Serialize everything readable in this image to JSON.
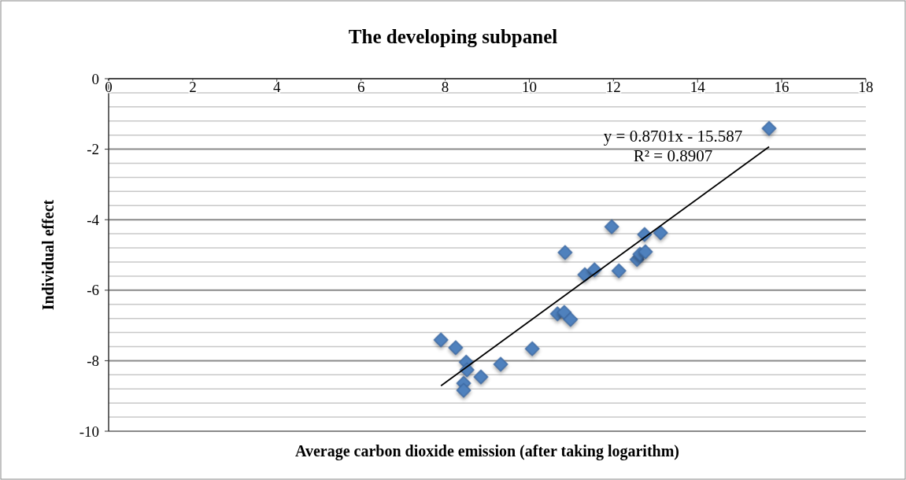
{
  "chart_data": {
    "type": "scatter",
    "title": "The developing subpanel",
    "xlabel": "Average carbon dioxide emission (after taking logarithm)",
    "ylabel": "Individual effect",
    "xlim": [
      0,
      18
    ],
    "xticks": [
      0,
      2,
      4,
      6,
      8,
      10,
      12,
      14,
      16,
      18
    ],
    "ylim": [
      -10,
      0
    ],
    "yticks": [
      -10,
      {
        "value": -9.6,
        "label": null
      },
      {
        "value": -9.2,
        "label": null
      },
      {
        "value": -8.8,
        "label": null
      },
      {
        "value": -8.4,
        "label": null
      },
      -8,
      {
        "value": -7.6,
        "label": null
      },
      {
        "value": -7.2,
        "label": null
      },
      {
        "value": -6.8,
        "label": null
      },
      {
        "value": -6.4,
        "label": null
      },
      -6,
      {
        "value": -5.6,
        "label": null
      },
      {
        "value": -5.2,
        "label": null
      },
      {
        "value": -4.8,
        "label": null
      },
      {
        "value": -4.4,
        "label": null
      },
      -4,
      {
        "value": -3.6,
        "label": null
      },
      {
        "value": -3.2,
        "label": null
      },
      {
        "value": -2.8,
        "label": null
      },
      {
        "value": -2.4,
        "label": null
      },
      -2,
      {
        "value": -1.6,
        "label": null
      },
      {
        "value": -1.2,
        "label": null
      },
      {
        "value": -0.8,
        "label": null
      },
      {
        "value": -0.4,
        "label": null
      },
      0
    ],
    "grid": "y",
    "series": [
      {
        "marker": "diamond",
        "color": "#4f81bd",
        "x": [
          7.9,
          8.25,
          8.5,
          8.52,
          8.44,
          8.44,
          8.85,
          9.32,
          10.07,
          10.67,
          10.83,
          10.98,
          10.85,
          11.32,
          11.55,
          12.13,
          11.96,
          12.56,
          12.63,
          12.76,
          12.74,
          13.12,
          15.7
        ],
        "values": [
          -7.41,
          -7.63,
          -8.04,
          -8.26,
          -8.64,
          -8.84,
          -8.46,
          -8.1,
          -7.66,
          -6.67,
          -6.63,
          -6.83,
          -4.93,
          -5.56,
          -5.42,
          -5.45,
          -4.2,
          -5.13,
          -4.98,
          -4.91,
          -4.42,
          -4.37,
          -1.41
        ]
      },
      {
        "type": "line",
        "color": "#000000",
        "x": [
          7.9,
          15.7
        ],
        "values": [
          -8.71,
          -1.93
        ]
      }
    ],
    "annotations": [
      "y = 0.8701x - 15.587",
      "R² = 0.8907"
    ]
  }
}
